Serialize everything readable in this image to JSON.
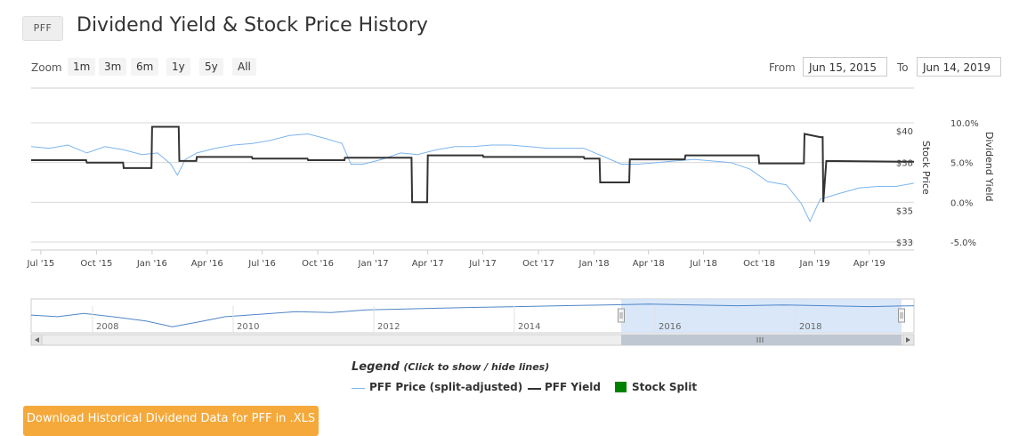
{
  "header": {
    "ticker": "PFF",
    "title": "Dividend Yield & Stock Price History"
  },
  "range_selector": {
    "zoom_label": "Zoom",
    "buttons": [
      "1m",
      "3m",
      "6m",
      "1y",
      "5y",
      "All"
    ],
    "from_label": "From",
    "from_value": "Jun 15, 2015",
    "to_label": "To",
    "to_value": "Jun 14, 2019"
  },
  "legend": {
    "title": "Legend",
    "hint": "(Click to show / hide lines)",
    "items": [
      "PFF Price (split-adjusted)",
      "PFF Yield",
      "Stock Split"
    ]
  },
  "download_label": "Download Historical Dividend Data for PFF in .XLS",
  "colors": {
    "price": "#7cb5ec",
    "yield": "#333333",
    "split": "#008000",
    "navigator_fill": "#cfe1f7",
    "download": "#f5a93b"
  },
  "chart_data": {
    "type": "line",
    "x_ticks": [
      "Jul '15",
      "Oct '15",
      "Jan '16",
      "Apr '16",
      "Jul '16",
      "Oct '16",
      "Jan '17",
      "Apr '17",
      "Jul '17",
      "Oct '17",
      "Jan '18",
      "Apr '18",
      "Jul '18",
      "Oct '18",
      "Jan '19",
      "Apr '19"
    ],
    "y_left": {
      "label": "Stock Price",
      "ticks": [
        "$33",
        "$35",
        "$38",
        "$40"
      ],
      "range": [
        33,
        40.5
      ]
    },
    "y_right": {
      "label": "Dividend Yield",
      "ticks": [
        "-5.0%",
        "0.0%",
        "5.0%",
        "10.0%"
      ],
      "range": [
        -5,
        10
      ]
    },
    "series": [
      {
        "name": "PFF Price (split-adjusted)",
        "axis": "left",
        "points": [
          [
            "2015-06-15",
            39.0
          ],
          [
            "2015-07-15",
            38.9
          ],
          [
            "2015-08-15",
            39.1
          ],
          [
            "2015-09-15",
            38.6
          ],
          [
            "2015-10-15",
            39.0
          ],
          [
            "2015-11-15",
            38.8
          ],
          [
            "2015-12-15",
            38.5
          ],
          [
            "2016-01-10",
            38.6
          ],
          [
            "2016-02-01",
            37.9
          ],
          [
            "2016-02-12",
            37.2
          ],
          [
            "2016-02-25",
            38.2
          ],
          [
            "2016-03-15",
            38.6
          ],
          [
            "2016-04-15",
            38.9
          ],
          [
            "2016-05-15",
            39.1
          ],
          [
            "2016-06-15",
            39.2
          ],
          [
            "2016-07-15",
            39.4
          ],
          [
            "2016-08-15",
            39.7
          ],
          [
            "2016-09-15",
            39.8
          ],
          [
            "2016-10-15",
            39.5
          ],
          [
            "2016-11-10",
            39.2
          ],
          [
            "2016-11-25",
            37.9
          ],
          [
            "2016-12-15",
            37.9
          ],
          [
            "2017-01-15",
            38.2
          ],
          [
            "2017-02-15",
            38.6
          ],
          [
            "2017-03-15",
            38.5
          ],
          [
            "2017-04-15",
            38.8
          ],
          [
            "2017-05-15",
            39.0
          ],
          [
            "2017-06-15",
            39.0
          ],
          [
            "2017-07-15",
            39.1
          ],
          [
            "2017-08-15",
            39.1
          ],
          [
            "2017-09-15",
            39.0
          ],
          [
            "2017-10-15",
            38.9
          ],
          [
            "2017-11-15",
            38.9
          ],
          [
            "2017-12-15",
            38.9
          ],
          [
            "2018-01-15",
            38.4
          ],
          [
            "2018-02-15",
            37.9
          ],
          [
            "2018-03-15",
            37.9
          ],
          [
            "2018-04-15",
            38.0
          ],
          [
            "2018-05-15",
            38.1
          ],
          [
            "2018-06-15",
            38.2
          ],
          [
            "2018-07-15",
            38.1
          ],
          [
            "2018-08-15",
            38.0
          ],
          [
            "2018-09-15",
            37.6
          ],
          [
            "2018-10-15",
            36.8
          ],
          [
            "2018-11-15",
            36.6
          ],
          [
            "2018-12-10",
            35.4
          ],
          [
            "2018-12-24",
            34.3
          ],
          [
            "2019-01-10",
            35.7
          ],
          [
            "2019-02-15",
            36.1
          ],
          [
            "2019-03-15",
            36.4
          ],
          [
            "2019-04-15",
            36.5
          ],
          [
            "2019-05-15",
            36.5
          ],
          [
            "2019-06-14",
            36.7
          ]
        ]
      },
      {
        "name": "PFF Yield",
        "axis": "right",
        "points": [
          [
            "2015-06-15",
            5.3
          ],
          [
            "2015-09-14",
            5.3
          ],
          [
            "2015-09-15",
            5.0
          ],
          [
            "2015-11-14",
            5.0
          ],
          [
            "2015-11-15",
            4.3
          ],
          [
            "2015-12-31",
            4.3
          ],
          [
            "2016-01-01",
            9.5
          ],
          [
            "2016-02-14",
            9.5
          ],
          [
            "2016-02-15",
            5.2
          ],
          [
            "2016-03-14",
            5.2
          ],
          [
            "2016-03-15",
            5.7
          ],
          [
            "2016-06-14",
            5.7
          ],
          [
            "2016-06-15",
            5.5
          ],
          [
            "2016-09-14",
            5.5
          ],
          [
            "2016-09-15",
            5.3
          ],
          [
            "2016-11-14",
            5.3
          ],
          [
            "2016-11-15",
            5.6
          ],
          [
            "2017-03-05",
            5.6
          ],
          [
            "2017-03-06",
            0.0
          ],
          [
            "2017-03-31",
            0.0
          ],
          [
            "2017-04-01",
            5.9
          ],
          [
            "2017-07-01",
            5.9
          ],
          [
            "2017-07-02",
            5.7
          ],
          [
            "2017-12-15",
            5.7
          ],
          [
            "2017-12-16",
            5.5
          ],
          [
            "2018-01-10",
            5.5
          ],
          [
            "2018-01-11",
            2.5
          ],
          [
            "2018-02-28",
            2.5
          ],
          [
            "2018-03-01",
            5.4
          ],
          [
            "2018-05-31",
            5.4
          ],
          [
            "2018-06-01",
            5.9
          ],
          [
            "2018-09-30",
            5.9
          ],
          [
            "2018-10-01",
            4.9
          ],
          [
            "2018-12-14",
            4.9
          ],
          [
            "2018-12-15",
            8.6
          ],
          [
            "2019-01-10",
            8.2
          ],
          [
            "2019-01-14",
            8.2
          ],
          [
            "2019-01-15",
            0.0
          ],
          [
            "2019-01-20",
            5.2
          ],
          [
            "2019-06-14",
            5.1
          ]
        ]
      }
    ],
    "navigator": {
      "ticks": [
        "2008",
        "2010",
        "2012",
        "2014",
        "2016",
        "2018"
      ]
    }
  }
}
